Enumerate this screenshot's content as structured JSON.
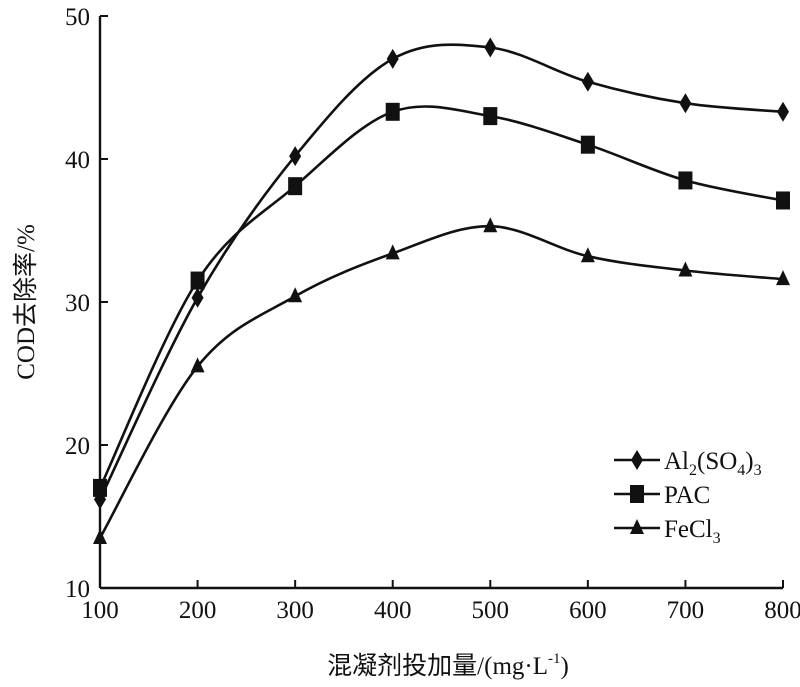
{
  "chart_data": {
    "type": "line",
    "xlabel": "混凝剂投加量/(mg·L",
    "xlabel_sup": "-1",
    "xlabel_close": ")",
    "ylabel": "COD去除率/%",
    "xlim": [
      100,
      800
    ],
    "ylim": [
      10,
      50
    ],
    "xticks": [
      "100",
      "200",
      "300",
      "400",
      "500",
      "600",
      "700",
      "800"
    ],
    "yticks": [
      "10",
      "20",
      "30",
      "40",
      "50"
    ],
    "x": [
      100,
      200,
      300,
      400,
      500,
      600,
      700,
      800
    ],
    "series": [
      {
        "name_parts": [
          "Al",
          "2",
          "(SO",
          "4",
          ")",
          "3"
        ],
        "marker": "diamond",
        "values": [
          16.2,
          30.3,
          40.2,
          47.0,
          47.8,
          45.4,
          43.9,
          43.3
        ]
      },
      {
        "name_parts": [
          "PAC"
        ],
        "marker": "square",
        "values": [
          17.0,
          31.5,
          38.1,
          43.3,
          43.0,
          41.0,
          38.5,
          37.1
        ]
      },
      {
        "name_parts": [
          "FeCl",
          "3"
        ],
        "marker": "triangle",
        "values": [
          13.5,
          25.5,
          30.4,
          33.4,
          35.3,
          33.2,
          32.2,
          31.6
        ]
      }
    ],
    "grid": false,
    "legend_position": "bottom-right"
  }
}
